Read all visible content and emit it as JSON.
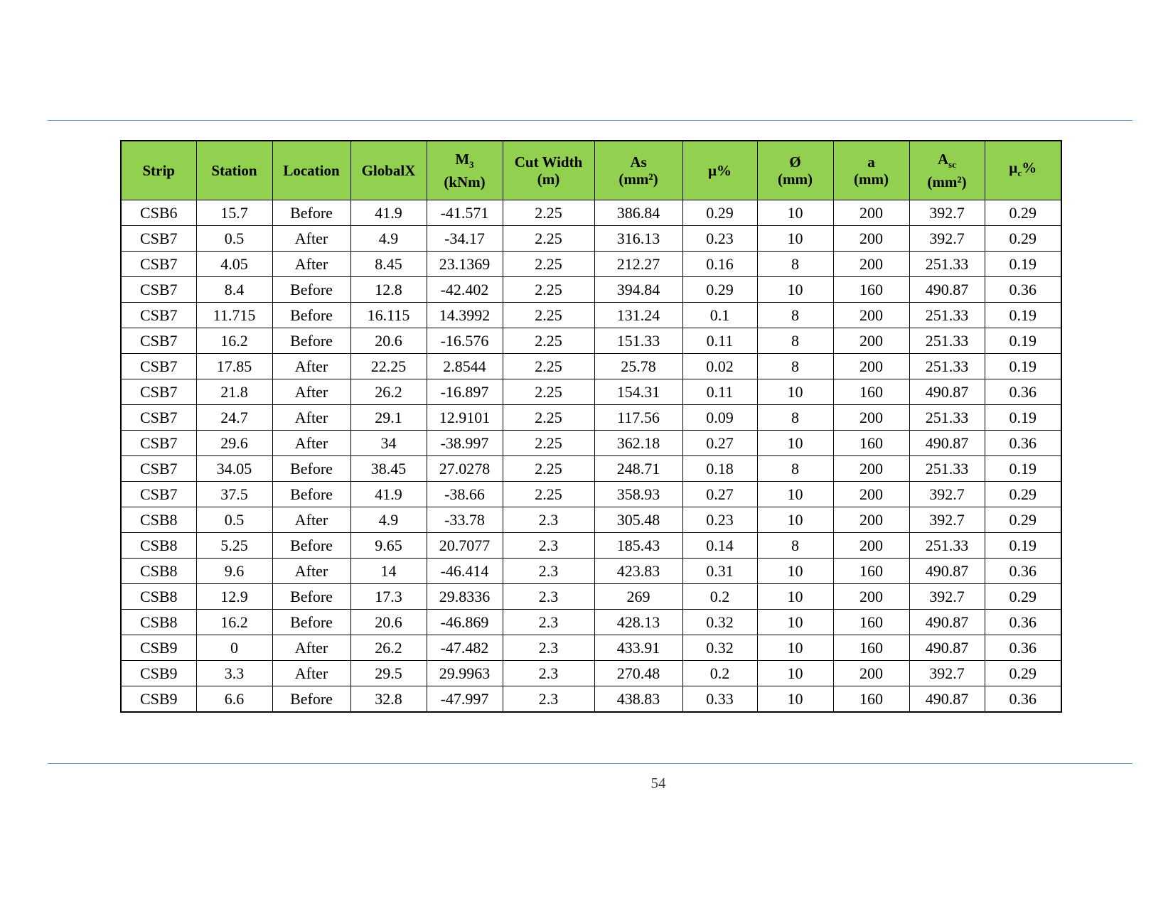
{
  "table": {
    "headers": [
      {
        "main": "Strip"
      },
      {
        "main": "Station"
      },
      {
        "main": "Location"
      },
      {
        "main": "GlobalX"
      },
      {
        "main": "M",
        "sub": "3",
        "unit": "(kNm)"
      },
      {
        "main": "Cut Width",
        "unit": "(m)"
      },
      {
        "main": "As",
        "unit": "(mm²)"
      },
      {
        "main": "µ%"
      },
      {
        "main": "Ø",
        "unit": "(mm)"
      },
      {
        "main": "a",
        "unit": "(mm)"
      },
      {
        "main": "A",
        "sub": "sc",
        "unit": "(mm²)"
      },
      {
        "main": "µ",
        "sub": "c",
        "tail": "%"
      }
    ],
    "rows": [
      [
        "CSB6",
        "15.7",
        "Before",
        "41.9",
        "-41.571",
        "2.25",
        "386.84",
        "0.29",
        "10",
        "200",
        "392.7",
        "0.29"
      ],
      [
        "CSB7",
        "0.5",
        "After",
        "4.9",
        "-34.17",
        "2.25",
        "316.13",
        "0.23",
        "10",
        "200",
        "392.7",
        "0.29"
      ],
      [
        "CSB7",
        "4.05",
        "After",
        "8.45",
        "23.1369",
        "2.25",
        "212.27",
        "0.16",
        "8",
        "200",
        "251.33",
        "0.19"
      ],
      [
        "CSB7",
        "8.4",
        "Before",
        "12.8",
        "-42.402",
        "2.25",
        "394.84",
        "0.29",
        "10",
        "160",
        "490.87",
        "0.36"
      ],
      [
        "CSB7",
        "11.715",
        "Before",
        "16.115",
        "14.3992",
        "2.25",
        "131.24",
        "0.1",
        "8",
        "200",
        "251.33",
        "0.19"
      ],
      [
        "CSB7",
        "16.2",
        "Before",
        "20.6",
        "-16.576",
        "2.25",
        "151.33",
        "0.11",
        "8",
        "200",
        "251.33",
        "0.19"
      ],
      [
        "CSB7",
        "17.85",
        "After",
        "22.25",
        "2.8544",
        "2.25",
        "25.78",
        "0.02",
        "8",
        "200",
        "251.33",
        "0.19"
      ],
      [
        "CSB7",
        "21.8",
        "After",
        "26.2",
        "-16.897",
        "2.25",
        "154.31",
        "0.11",
        "10",
        "160",
        "490.87",
        "0.36"
      ],
      [
        "CSB7",
        "24.7",
        "After",
        "29.1",
        "12.9101",
        "2.25",
        "117.56",
        "0.09",
        "8",
        "200",
        "251.33",
        "0.19"
      ],
      [
        "CSB7",
        "29.6",
        "After",
        "34",
        "-38.997",
        "2.25",
        "362.18",
        "0.27",
        "10",
        "160",
        "490.87",
        "0.36"
      ],
      [
        "CSB7",
        "34.05",
        "Before",
        "38.45",
        "27.0278",
        "2.25",
        "248.71",
        "0.18",
        "8",
        "200",
        "251.33",
        "0.19"
      ],
      [
        "CSB7",
        "37.5",
        "Before",
        "41.9",
        "-38.66",
        "2.25",
        "358.93",
        "0.27",
        "10",
        "200",
        "392.7",
        "0.29"
      ],
      [
        "CSB8",
        "0.5",
        "After",
        "4.9",
        "-33.78",
        "2.3",
        "305.48",
        "0.23",
        "10",
        "200",
        "392.7",
        "0.29"
      ],
      [
        "CSB8",
        "5.25",
        "Before",
        "9.65",
        "20.7077",
        "2.3",
        "185.43",
        "0.14",
        "8",
        "200",
        "251.33",
        "0.19"
      ],
      [
        "CSB8",
        "9.6",
        "After",
        "14",
        "-46.414",
        "2.3",
        "423.83",
        "0.31",
        "10",
        "160",
        "490.87",
        "0.36"
      ],
      [
        "CSB8",
        "12.9",
        "Before",
        "17.3",
        "29.8336",
        "2.3",
        "269",
        "0.2",
        "10",
        "200",
        "392.7",
        "0.29"
      ],
      [
        "CSB8",
        "16.2",
        "Before",
        "20.6",
        "-46.869",
        "2.3",
        "428.13",
        "0.32",
        "10",
        "160",
        "490.87",
        "0.36"
      ],
      [
        "CSB9",
        "0",
        "After",
        "26.2",
        "-47.482",
        "2.3",
        "433.91",
        "0.32",
        "10",
        "160",
        "490.87",
        "0.36"
      ],
      [
        "CSB9",
        "3.3",
        "After",
        "29.5",
        "29.9963",
        "2.3",
        "270.48",
        "0.2",
        "10",
        "200",
        "392.7",
        "0.29"
      ],
      [
        "CSB9",
        "6.6",
        "Before",
        "32.8",
        "-47.997",
        "2.3",
        "438.83",
        "0.33",
        "10",
        "160",
        "490.87",
        "0.36"
      ]
    ]
  },
  "page_number": "54",
  "colors": {
    "header_bg": "#92d050",
    "rule": "#5b9bd5"
  }
}
